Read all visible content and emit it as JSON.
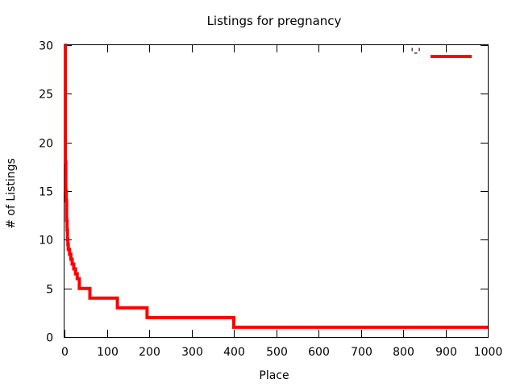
{
  "chart_data": {
    "type": "line",
    "title": "Listings for pregnancy",
    "xlabel": "Place",
    "ylabel": "# of Listings",
    "xlim": [
      0,
      1000
    ],
    "ylim": [
      0,
      30
    ],
    "xticks": [
      0,
      100,
      200,
      300,
      400,
      500,
      600,
      700,
      800,
      900,
      1000
    ],
    "yticks": [
      0,
      5,
      10,
      15,
      20,
      25,
      30
    ],
    "xtick_labels": [
      "0",
      "100",
      "200",
      "300",
      "400",
      "500",
      "600",
      "700",
      "800",
      "900",
      "1000"
    ],
    "ytick_labels": [
      "0",
      "5",
      "10",
      "15",
      "20",
      "25",
      "30"
    ],
    "grid": false,
    "legend_position": "top-right",
    "series": [
      {
        "name": "'-'",
        "color": "#ff0000",
        "style": "steps",
        "x": [
          1,
          2,
          3,
          4,
          5,
          6,
          7,
          8,
          9,
          10,
          12,
          15,
          18,
          22,
          26,
          30,
          35,
          60,
          125,
          195,
          400,
          1000
        ],
        "y": [
          30,
          18,
          15,
          14,
          12,
          11,
          10,
          9.5,
          9,
          9,
          8.5,
          8,
          7.5,
          7,
          6.5,
          6,
          5,
          4,
          3,
          2,
          1,
          1
        ]
      }
    ]
  }
}
